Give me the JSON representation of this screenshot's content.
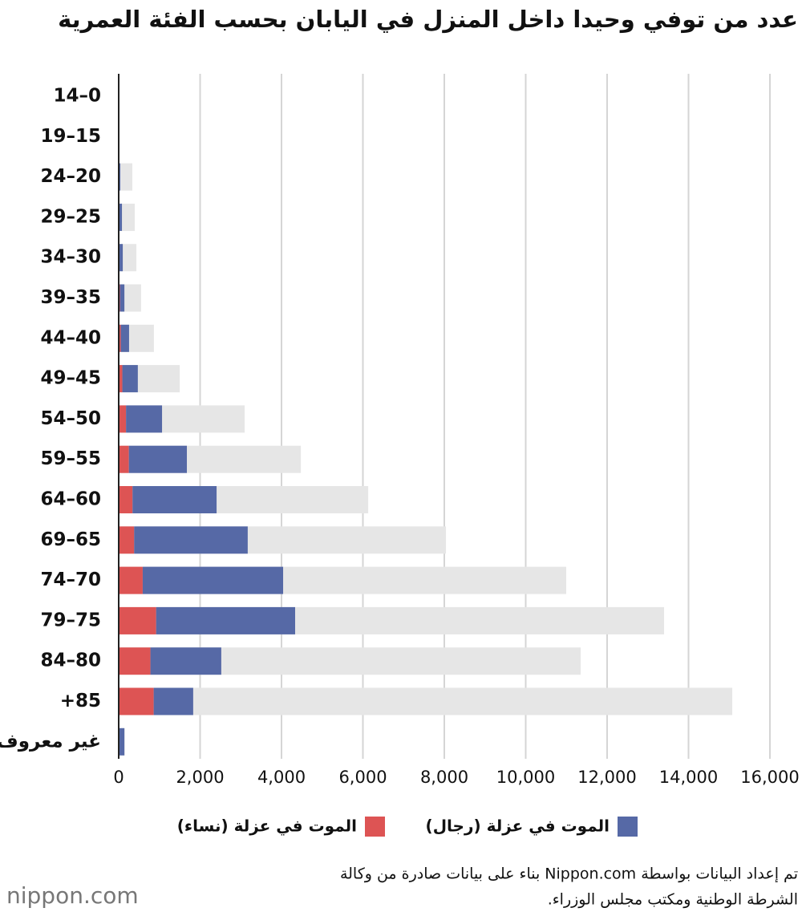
{
  "chart_data": {
    "type": "bar",
    "title": "عدد من توفي وحيدا داخل المنزل في اليابان بحسب الفئة العمرية",
    "categories": [
      "14–0",
      "19–15",
      "24–20",
      "29–25",
      "34–30",
      "39–35",
      "44–40",
      "49–45",
      "54–50",
      "59–55",
      "64–60",
      "69–65",
      "74–70",
      "79–75",
      "84–80",
      "+85",
      "غير معروف"
    ],
    "series": [
      {
        "color": "#e6e6e6",
        "values": [
          10,
          15,
          335,
          395,
          435,
          550,
          865,
          1500,
          3095,
          4475,
          6130,
          8040,
          10995,
          13400,
          11350,
          15075,
          150
        ]
      },
      {
        "name": "الموت في عزلة (نساء)",
        "color": "#dd5454",
        "values": [
          0,
          0,
          10,
          15,
          20,
          30,
          50,
          90,
          180,
          250,
          340,
          380,
          590,
          920,
          780,
          860,
          20
        ]
      },
      {
        "name": "الموت في عزلة (رجال)",
        "color": "#5669a6",
        "values": [
          0,
          0,
          30,
          65,
          80,
          110,
          205,
          380,
          885,
          1425,
          2065,
          2790,
          3450,
          3415,
          1740,
          970,
          120
        ]
      }
    ],
    "xlim": [
      0,
      16000
    ],
    "xticks": [
      0,
      {
        "value": 2000,
        "label": "2,000"
      },
      {
        "value": 4000,
        "label": "4,000"
      },
      {
        "value": 6000,
        "label": "6,000"
      },
      {
        "value": 8000,
        "label": "8,000"
      },
      {
        "value": 10000,
        "label": "10,000"
      },
      {
        "value": 12000,
        "label": "12,000"
      },
      {
        "value": 14000,
        "label": "14,000"
      },
      {
        "value": 16000,
        "label": "16,000"
      }
    ],
    "grid": true,
    "source": [
      "تم إعداد البيانات بواسطة Nippon.com بناء على بيانات صادرة من وكالة",
      "الشرطة الوطنية ومكتب مجلس الوزراء."
    ],
    "logo": "nippon.com"
  }
}
